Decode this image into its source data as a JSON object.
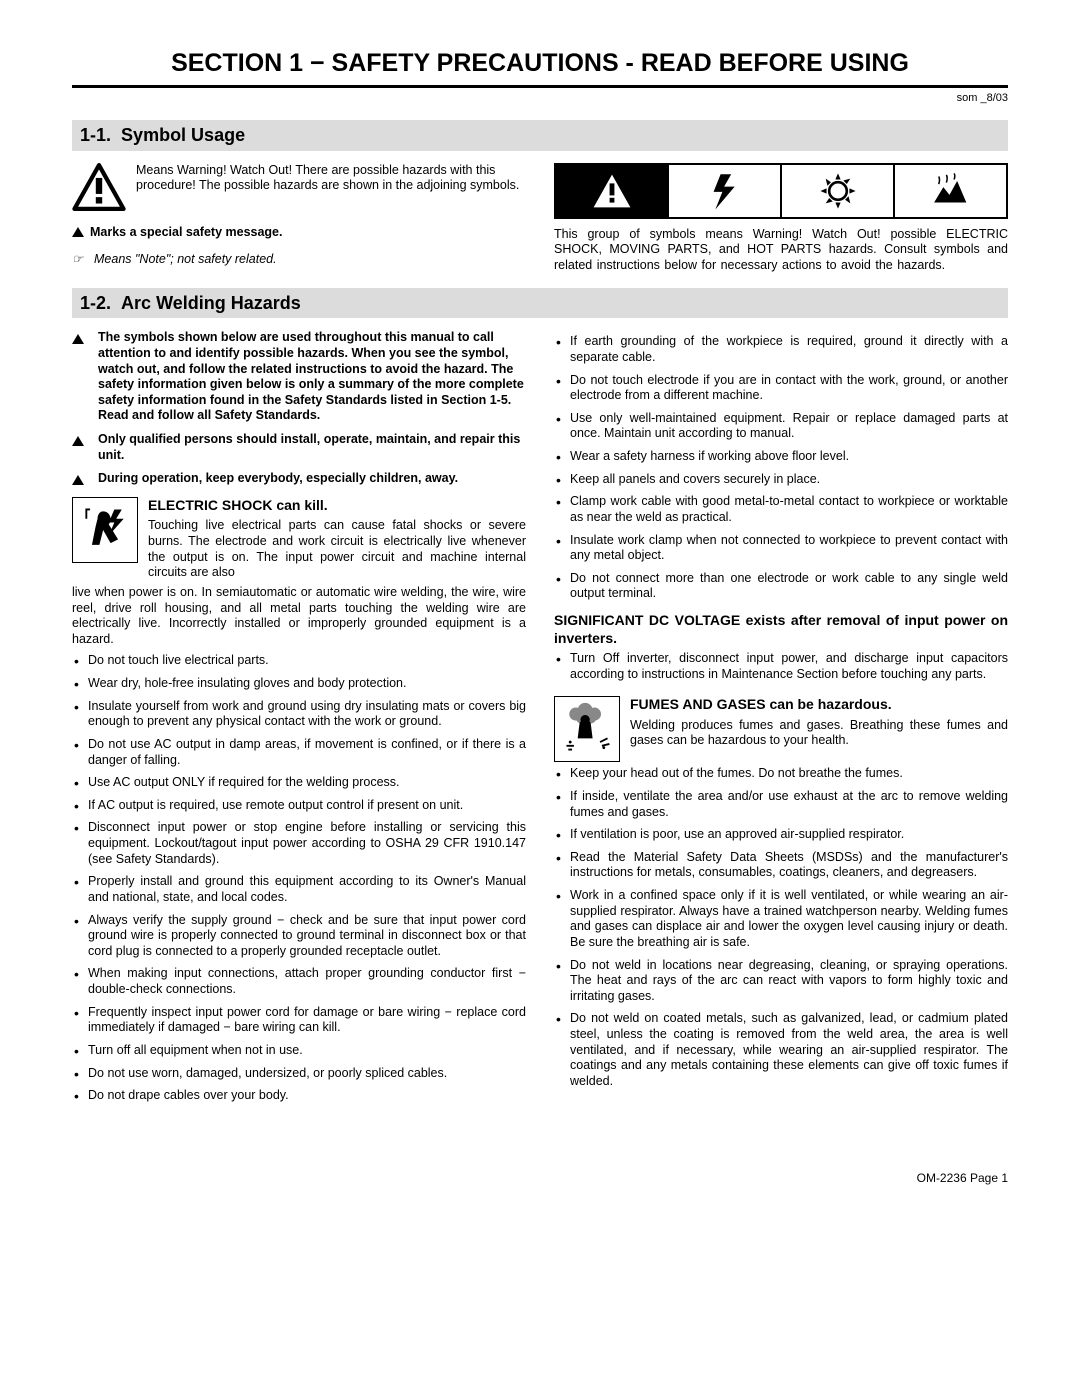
{
  "section_title": "SECTION 1 − SAFETY PRECAUTIONS - READ BEFORE USING",
  "doc_id": "som _8/03",
  "sub1": {
    "number": "1-1.",
    "title": "Symbol Usage",
    "warning_text": "Means Warning! Watch Out! There are possible hazards with this procedure! The possible hazards are shown in the adjoining symbols.",
    "marks_line": "Marks a special safety message.",
    "note_prefix": "☞",
    "note_line": "Means \"Note\"; not safety related.",
    "strip_note": "This group of symbols means Warning! Watch Out! possible ELECTRIC SHOCK, MOVING PARTS, and HOT PARTS hazards. Consult symbols and related instructions below for necessary actions to avoid the hazards."
  },
  "sub2": {
    "number": "1-2.",
    "title": "Arc Welding Hazards",
    "intro1": "The symbols shown below are used throughout this manual to call attention to and identify possible hazards. When you see the symbol, watch out, and follow the related instructions to avoid the hazard. The safety information given below is only a summary of the more complete safety information found in the Safety Standards listed in Section 1-5. Read and follow all Safety Standards.",
    "intro2": "Only qualified persons should install, operate, maintain, and repair this unit.",
    "intro3": "During operation, keep everybody, especially children, away.",
    "shock": {
      "head": "ELECTRIC SHOCK can kill.",
      "text": "Touching live electrical parts can cause fatal shocks or severe burns. The electrode and work circuit is electrically live whenever the output is on. The input power circuit and machine internal circuits are also",
      "overflow": "live when power is on. In semiautomatic or automatic wire welding, the wire, wire reel, drive roll housing, and all metal parts touching the welding wire are electrically live. Incorrectly installed or improperly grounded equipment is a hazard.",
      "bullets": [
        "Do not touch live electrical parts.",
        "Wear dry, hole-free insulating gloves and body protection.",
        "Insulate yourself from work and ground using dry insulating mats or covers big enough to prevent any physical contact with the work or ground.",
        "Do not use AC output in damp areas, if movement is confined, or if there is a danger of falling.",
        "Use AC output ONLY if required for the welding process.",
        "If AC output is required, use remote output control if present on unit.",
        "Disconnect input power or stop engine before installing or servicing this equipment. Lockout/tagout input power according to OSHA 29 CFR 1910.147 (see Safety Standards).",
        "Properly install and ground this equipment according to its Owner's Manual and national, state, and local codes.",
        "Always verify the supply ground − check and be sure that input power cord ground wire is properly connected to ground terminal in disconnect box or that cord plug is connected to a properly grounded receptacle outlet.",
        "When making input connections, attach proper grounding conductor first − double-check connections.",
        "Frequently inspect input power cord for damage or bare wiring − replace cord immediately if damaged − bare wiring can kill.",
        "Turn off all equipment when not in use.",
        "Do not use worn, damaged, undersized, or poorly spliced cables.",
        "Do not drape cables over your body."
      ]
    },
    "right_bullets": [
      "If earth grounding of the workpiece is required, ground it directly with a separate cable.",
      "Do not touch electrode if you are in contact with the work, ground, or another electrode from a different machine.",
      "Use only well-maintained equipment. Repair or replace damaged parts at once. Maintain unit according to manual.",
      "Wear a safety harness if working above floor level.",
      "Keep all panels and covers securely in place.",
      "Clamp work cable with good metal-to-metal contact to workpiece or worktable as near the weld as practical.",
      "Insulate work clamp when not connected to workpiece to prevent contact with any metal object.",
      "Do not connect more than one electrode or work cable to any single weld output terminal."
    ],
    "dc_head": "SIGNIFICANT DC VOLTAGE exists after removal of input power on inverters.",
    "dc_bullet": "Turn Off inverter, disconnect input power, and discharge input capacitors according to instructions in Maintenance Section before touching any parts.",
    "fumes": {
      "head": "FUMES AND GASES can be hazardous.",
      "text": "Welding produces fumes and gases. Breathing these fumes and gases can be hazardous to your health.",
      "bullets": [
        "Keep your head out of the fumes. Do not breathe the fumes.",
        "If inside, ventilate the area and/or use exhaust at the arc to remove welding fumes and gases.",
        "If ventilation is poor, use an approved air-supplied respirator.",
        "Read the Material Safety Data Sheets (MSDSs) and the manufacturer's instructions for metals, consumables, coatings, cleaners, and degreasers.",
        "Work in a confined space only if it is well ventilated, or while wearing an air-supplied respirator. Always have a trained watchperson nearby. Welding fumes and gases can displace air and lower the oxygen level causing injury or death. Be sure the breathing air is safe.",
        "Do not weld in locations near degreasing, cleaning, or spraying operations. The heat and rays of the arc can react with vapors to form highly toxic and irritating gases.",
        "Do not weld on coated metals, such as galvanized, lead, or cadmium plated steel, unless the coating is removed from the weld area, the area is well ventilated, and if necessary, while wearing an air-supplied respirator. The coatings and any metals containing these elements can give off toxic fumes if welded."
      ]
    }
  },
  "footer": "OM-2236 Page 1"
}
